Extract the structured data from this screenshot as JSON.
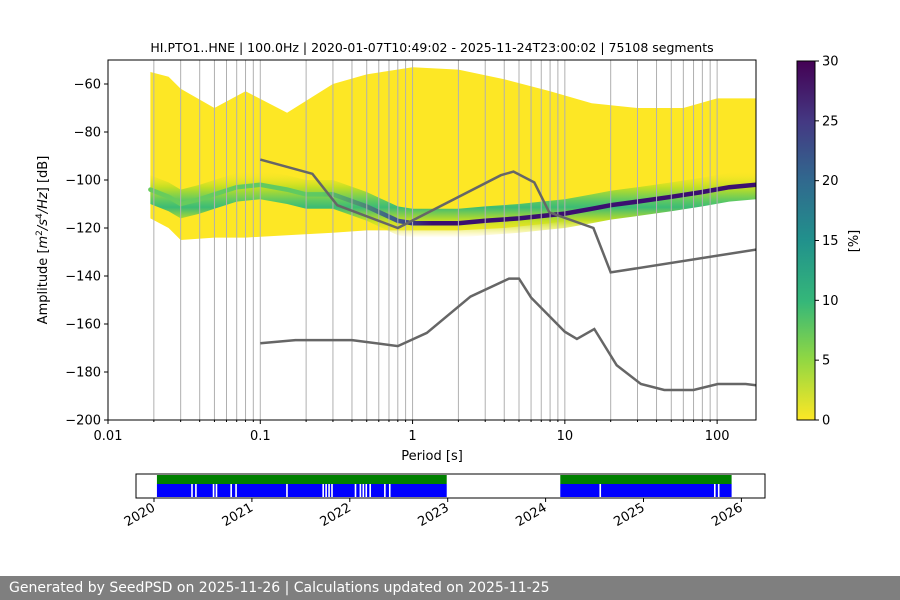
{
  "chart_data": {
    "type": "heatmap",
    "title": "HI.PTO1..HNE | 100.0Hz | 2020-01-07T10:49:02 - 2025-11-24T23:00:02 | 75108 segments",
    "xlabel": "Period [s]",
    "ylabel_prefix": "Amplitude [",
    "ylabel_suffix": "] [dB]",
    "ylabel_units": [
      "m",
      "2",
      "/s",
      "4",
      "/Hz"
    ],
    "x_scale": "log",
    "xlim": [
      0.01,
      180
    ],
    "ylim": [
      -200,
      -50
    ],
    "x_ticks": [
      0.01,
      0.1,
      1,
      10,
      100
    ],
    "x_tick_labels": [
      "0.01",
      "0.1",
      "1",
      "10",
      "100"
    ],
    "y_ticks": [
      -200,
      -180,
      -160,
      -140,
      -120,
      -100,
      -80,
      -60
    ],
    "y_tick_labels": [
      "−200",
      "−180",
      "−160",
      "−140",
      "−120",
      "−100",
      "−80",
      "−60"
    ],
    "grid": "vertical lines at log period ticks",
    "colormap": "viridis_r (0 = yellow, 30 = dark purple)",
    "colorbar": {
      "label": "[%]",
      "range": [
        0,
        30
      ],
      "ticks": [
        0,
        5,
        10,
        15,
        20,
        25,
        30
      ],
      "tick_labels": [
        "0",
        "5",
        "10",
        "15",
        "20",
        "25",
        "30"
      ],
      "colors": [
        "#fde725",
        "#90d743",
        "#35b779",
        "#21918c",
        "#31688e",
        "#443983",
        "#440154"
      ]
    },
    "density_extent": {
      "period": [
        0.019,
        0.025,
        0.03,
        0.05,
        0.08,
        0.15,
        0.3,
        0.5,
        1,
        2,
        4,
        8,
        15,
        30,
        60,
        100,
        180
      ],
      "upper_db": [
        -55,
        -57,
        -62,
        -70,
        -63,
        -72,
        -60,
        -56,
        -53,
        -54,
        -58,
        -63,
        -68,
        -70,
        -70,
        -66,
        -66
      ],
      "lower_db": [
        -116,
        -120,
        -125,
        -124,
        -124,
        -123,
        -122,
        -121,
        -121,
        -121,
        -120,
        -118,
        -115,
        -111,
        -107,
        -104,
        -101
      ]
    },
    "mode_curve": {
      "name": "",
      "period": [
        0.019,
        0.025,
        0.03,
        0.04,
        0.05,
        0.07,
        0.1,
        0.15,
        0.2,
        0.3,
        0.5,
        0.8,
        1,
        1.5,
        2,
        3,
        5,
        7,
        10,
        15,
        20,
        30,
        50,
        80,
        120,
        180
      ],
      "db": [
        -104,
        -107,
        -110,
        -108,
        -106,
        -103,
        -102,
        -104,
        -106,
        -106,
        -111,
        -117,
        -118,
        -118,
        -118,
        -117,
        -116,
        -115,
        -114,
        -112,
        -110.5,
        -109,
        -107,
        -105,
        -103,
        -102
      ]
    },
    "reference_models": [
      {
        "name": "",
        "period": [
          0.1,
          0.22,
          0.32,
          0.8,
          3.8,
          4.6,
          6.3,
          7.9,
          15.4,
          20,
          180
        ],
        "db": [
          -91.5,
          -97.4,
          -110.5,
          -120,
          -98,
          -96.5,
          -101,
          -113.5,
          -120,
          -138.5,
          -129
        ]
      },
      {
        "name": "",
        "period": [
          0.1,
          0.17,
          0.4,
          0.8,
          1.24,
          2.4,
          4.3,
          5,
          6,
          10,
          12,
          15.6,
          21.9,
          31.6,
          45,
          70,
          101,
          154,
          180
        ],
        "db": [
          -168,
          -166.7,
          -166.7,
          -169.2,
          -163.7,
          -148.6,
          -141.1,
          -141.1,
          -149,
          -163.2,
          -166.2,
          -162.1,
          -177.2,
          -185,
          -187.5,
          -187.5,
          -185,
          -185,
          -185.5
        ]
      }
    ]
  },
  "timeline": {
    "x_tick_labels": [
      "2020",
      "2021",
      "2022",
      "2023",
      "2024",
      "2025",
      "2026"
    ],
    "segments": [
      {
        "start": 2020.03,
        "end": 2022.99
      },
      {
        "start": 2024.15,
        "end": 2025.9
      }
    ],
    "gaps": [
      2020.38,
      2020.42,
      2020.6,
      2020.63,
      2020.78,
      2020.83,
      2021.35,
      2021.72,
      2021.75,
      2021.78,
      2021.81,
      2022.05,
      2022.1,
      2022.13,
      2022.16,
      2022.2,
      2022.35,
      2022.4,
      2024.55,
      2025.72,
      2025.76
    ],
    "colors": {
      "available": "#0000ff",
      "processed": "#008000"
    }
  },
  "footer": {
    "text": "Generated by SeedPSD on 2025-11-26 | Calculations updated on 2025-11-25"
  }
}
